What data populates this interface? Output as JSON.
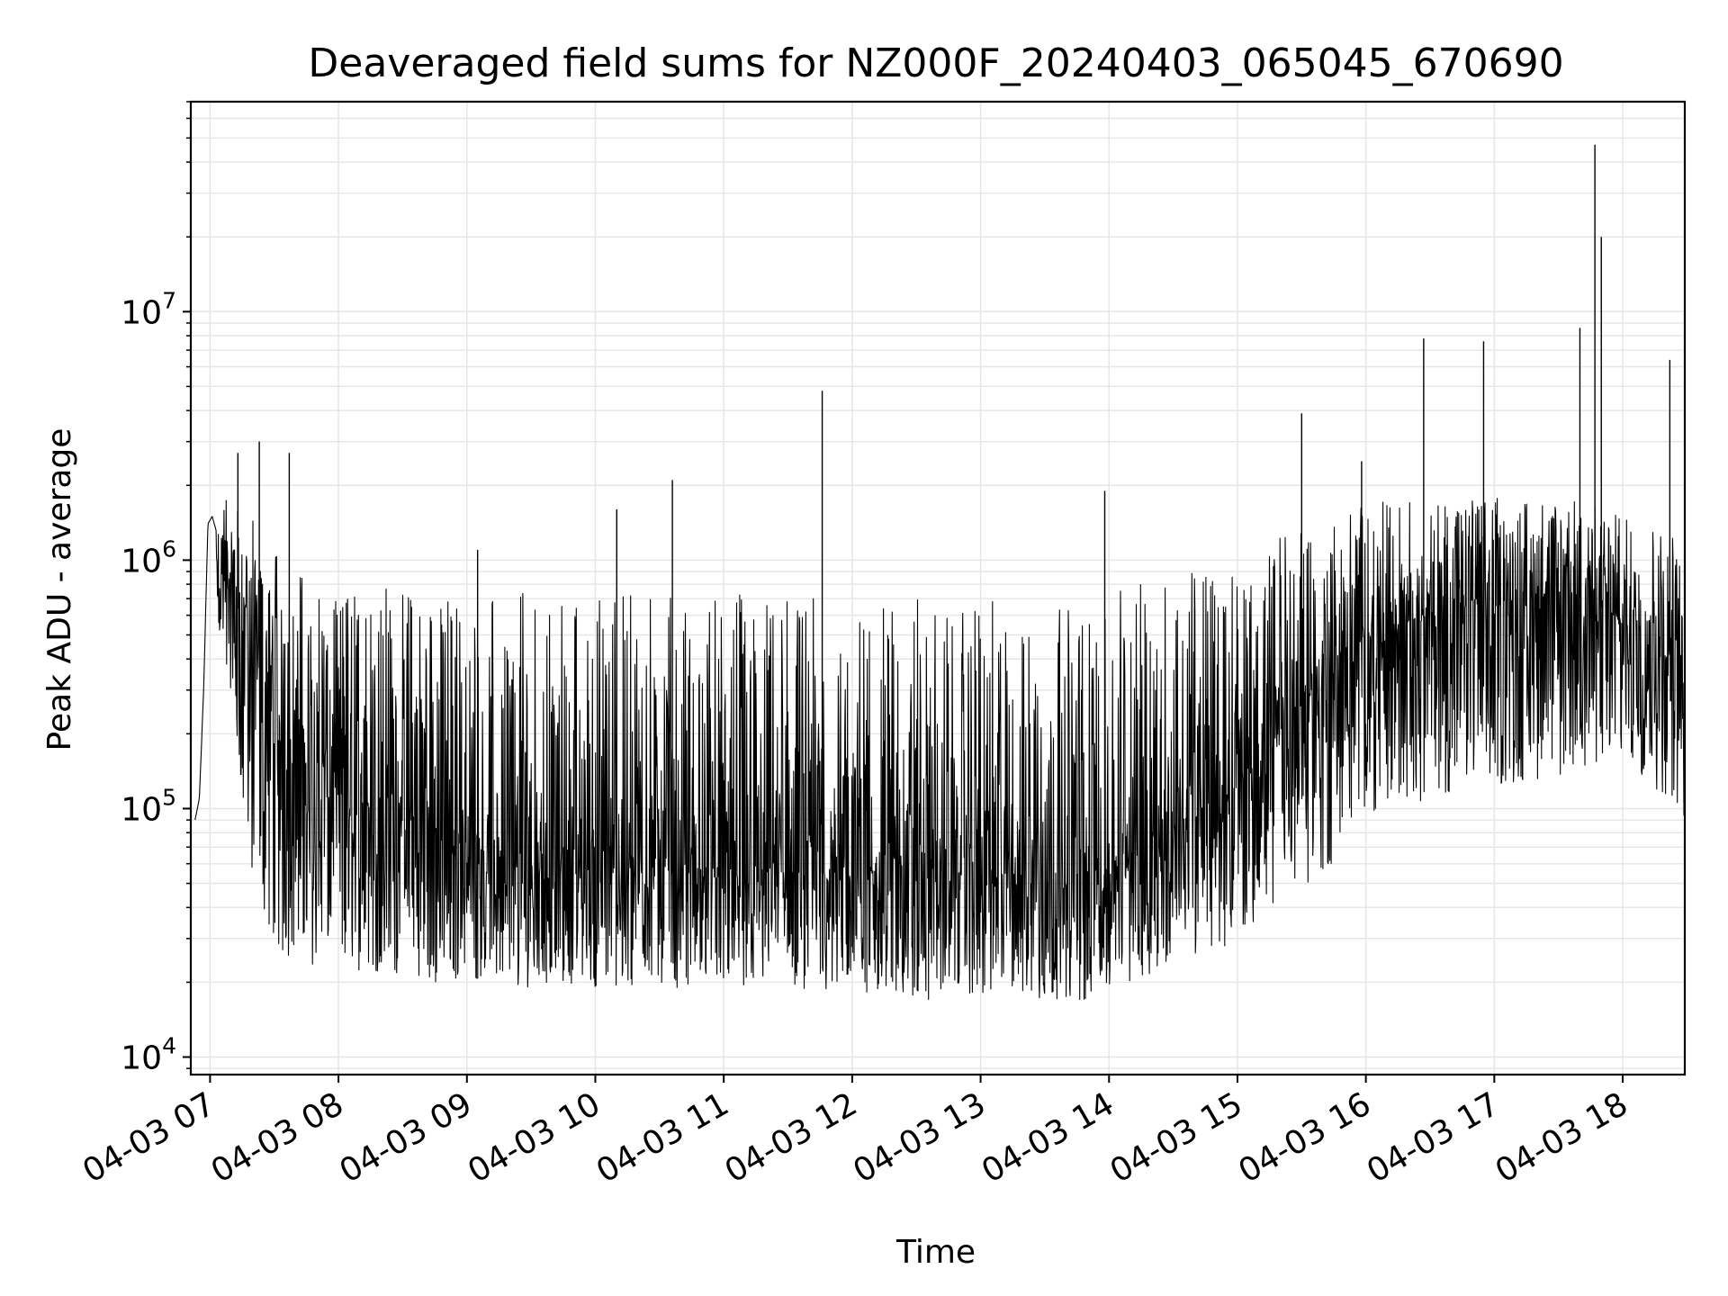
{
  "chart_data": {
    "type": "line",
    "title": "Deaveraged field sums for NZ000F_20240403_065045_670690",
    "xlabel": "Time",
    "ylabel": "Peak ADU - average",
    "yscale": "log",
    "xlim": [
      "04-03 06:51",
      "04-03 18:29"
    ],
    "ylim": [
      8500,
      70000000
    ],
    "grid": "on (major and minor)",
    "line_color": "#000000",
    "x_ticks": [
      "04-03 07",
      "04-03 08",
      "04-03 09",
      "04-03 10",
      "04-03 11",
      "04-03 12",
      "04-03 13",
      "04-03 14",
      "04-03 15",
      "04-03 16",
      "04-03 17",
      "04-03 18"
    ],
    "y_ticks": [
      {
        "value": 10000,
        "base": "10",
        "exp": "4"
      },
      {
        "value": 100000,
        "base": "10",
        "exp": "5"
      },
      {
        "value": 1000000,
        "base": "10",
        "exp": "6"
      },
      {
        "value": 10000000,
        "base": "10",
        "exp": "7"
      }
    ],
    "series": [
      {
        "x": [
          "06:53",
          "06:55",
          "06:57",
          "06:59",
          "07:01",
          "07:03",
          "07:05",
          "07:10",
          "07:15",
          "07:20",
          "07:25",
          "07:30",
          "07:35",
          "07:40",
          "07:50",
          "08:00",
          "08:15",
          "08:30",
          "08:45",
          "09:00",
          "09:30",
          "10:00",
          "10:30",
          "11:00",
          "11:30",
          "12:00",
          "12:30",
          "13:00",
          "13:30",
          "13:55",
          "14:05",
          "14:30",
          "15:00",
          "15:15",
          "15:30",
          "15:45",
          "16:00",
          "16:15",
          "16:30",
          "16:45",
          "17:00",
          "17:15",
          "17:30",
          "17:45",
          "18:00",
          "18:15",
          "18:25",
          "18:29"
        ],
        "y": [
          90000,
          110000,
          300000,
          1400000,
          1500000,
          1300000,
          900000,
          700000,
          600000,
          500000,
          300000,
          250000,
          200000,
          180000,
          150000,
          120000,
          100000,
          90000,
          80000,
          70000,
          60000,
          55000,
          55000,
          55000,
          55000,
          55000,
          55000,
          55000,
          52000,
          50000,
          65000,
          80000,
          120000,
          180000,
          260000,
          350000,
          500000,
          550000,
          600000,
          620000,
          650000,
          700000,
          720000,
          700000,
          550000,
          500000,
          450000,
          250000
        ],
        "low": [
          80000,
          100000,
          200000,
          900000,
          800000,
          600000,
          350000,
          300000,
          100000,
          50000,
          35000,
          28000,
          25000,
          25000,
          23000,
          23000,
          22000,
          21000,
          20000,
          20000,
          19000,
          19000,
          19000,
          19000,
          19000,
          18000,
          17000,
          17000,
          17000,
          17000,
          19000,
          24000,
          28000,
          35000,
          45000,
          60000,
          90000,
          100000,
          110000,
          120000,
          120000,
          130000,
          130000,
          150000,
          140000,
          120000,
          100000,
          90000
        ],
        "high": [
          90000,
          120000,
          400000,
          1700000,
          1900000,
          1900000,
          1800000,
          1700000,
          1600000,
          1500000,
          1300000,
          1100000,
          1000000,
          950000,
          900000,
          850000,
          850000,
          800000,
          800000,
          750000,
          750000,
          750000,
          750000,
          750000,
          700000,
          700000,
          700000,
          700000,
          650000,
          650000,
          750000,
          900000,
          1100000,
          1300000,
          1500000,
          1600000,
          1700000,
          1750000,
          1800000,
          1800000,
          1800000,
          1800000,
          1800000,
          1700000,
          1500000,
          1400000,
          1300000,
          900000
        ]
      }
    ],
    "spikes": [
      {
        "x": "07:13",
        "y": 2700000
      },
      {
        "x": "07:23",
        "y": 3000000
      },
      {
        "x": "07:37",
        "y": 2700000
      },
      {
        "x": "09:05",
        "y": 1100000
      },
      {
        "x": "10:10",
        "y": 1600000
      },
      {
        "x": "10:36",
        "y": 2100000
      },
      {
        "x": "11:46",
        "y": 4800000
      },
      {
        "x": "13:58",
        "y": 1900000
      },
      {
        "x": "15:30",
        "y": 3900000
      },
      {
        "x": "15:58",
        "y": 2500000
      },
      {
        "x": "16:27",
        "y": 7800000
      },
      {
        "x": "16:55",
        "y": 7600000
      },
      {
        "x": "17:40",
        "y": 8600000
      },
      {
        "x": "17:47",
        "y": 47000000
      },
      {
        "x": "17:50",
        "y": 20000000
      },
      {
        "x": "18:22",
        "y": 6400000
      }
    ]
  }
}
